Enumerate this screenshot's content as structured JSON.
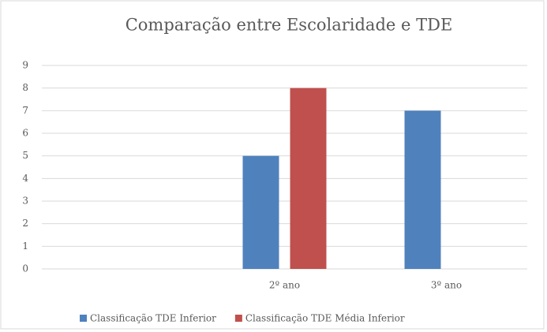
{
  "chart_data": {
    "type": "bar",
    "title": "Comparação entre Escolaridade e TDE",
    "categories": [
      null,
      "2º ano",
      "3º ano"
    ],
    "series": [
      {
        "name": "Classificação TDE Inferior",
        "color": "#4f81bd",
        "values": [
          null,
          5,
          7
        ]
      },
      {
        "name": "Classificação TDE Média Inferior",
        "color": "#c0504d",
        "values": [
          null,
          8,
          null
        ]
      }
    ],
    "ylim": [
      0,
      9
    ],
    "yticks": [
      0,
      1,
      2,
      3,
      4,
      5,
      6,
      7,
      8,
      9
    ],
    "grid": true,
    "legend": "bottom"
  }
}
